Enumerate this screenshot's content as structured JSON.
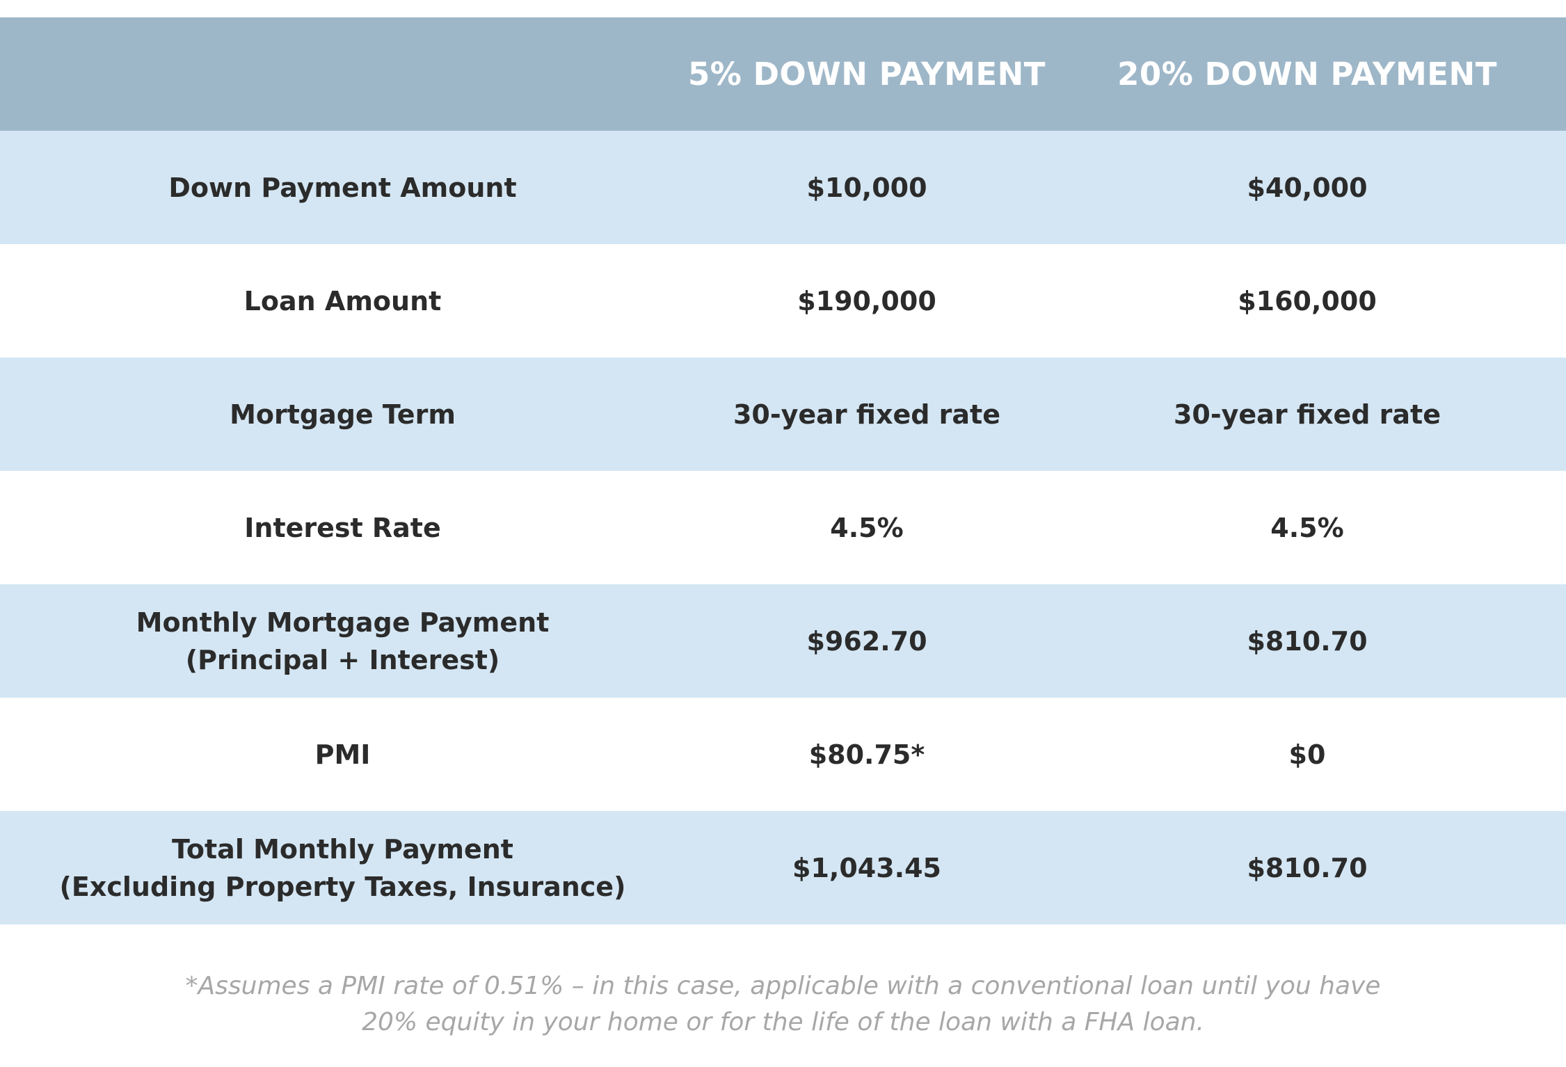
{
  "table": {
    "headers": [
      "",
      "5% DOWN PAYMENT",
      "20% DOWN PAYMENT"
    ],
    "rows": [
      {
        "label": "Down Payment Amount",
        "five": "$10,000",
        "twenty": "$40,000"
      },
      {
        "label": "Loan Amount",
        "five": "$190,000",
        "twenty": "$160,000"
      },
      {
        "label": "Mortgage Term",
        "five": "30-year fixed rate",
        "twenty": "30-year fixed rate"
      },
      {
        "label": "Interest Rate",
        "five": "4.5%",
        "twenty": "4.5%"
      },
      {
        "label": "Monthly Mortgage Payment\n(Principal + Interest)",
        "five": "$962.70",
        "twenty": "$810.70"
      },
      {
        "label": "PMI",
        "five": "$80.75*",
        "twenty": "$0"
      },
      {
        "label": "Total Monthly Payment\n(Excluding Property Taxes, Insurance)",
        "five": "$1,043.45",
        "twenty": "$810.70"
      }
    ]
  },
  "footnote": "*Assumes a PMI rate of 0.51% – in this case, applicable with a conventional loan until you have\n20% equity in your home or for the life of the loan with a FHA loan.",
  "colors": {
    "header_bg": "#9eb7c8",
    "shaded_row_bg": "#d4e6f3",
    "text": "#2b2b2b",
    "footnote_text": "#a7a7a7"
  }
}
